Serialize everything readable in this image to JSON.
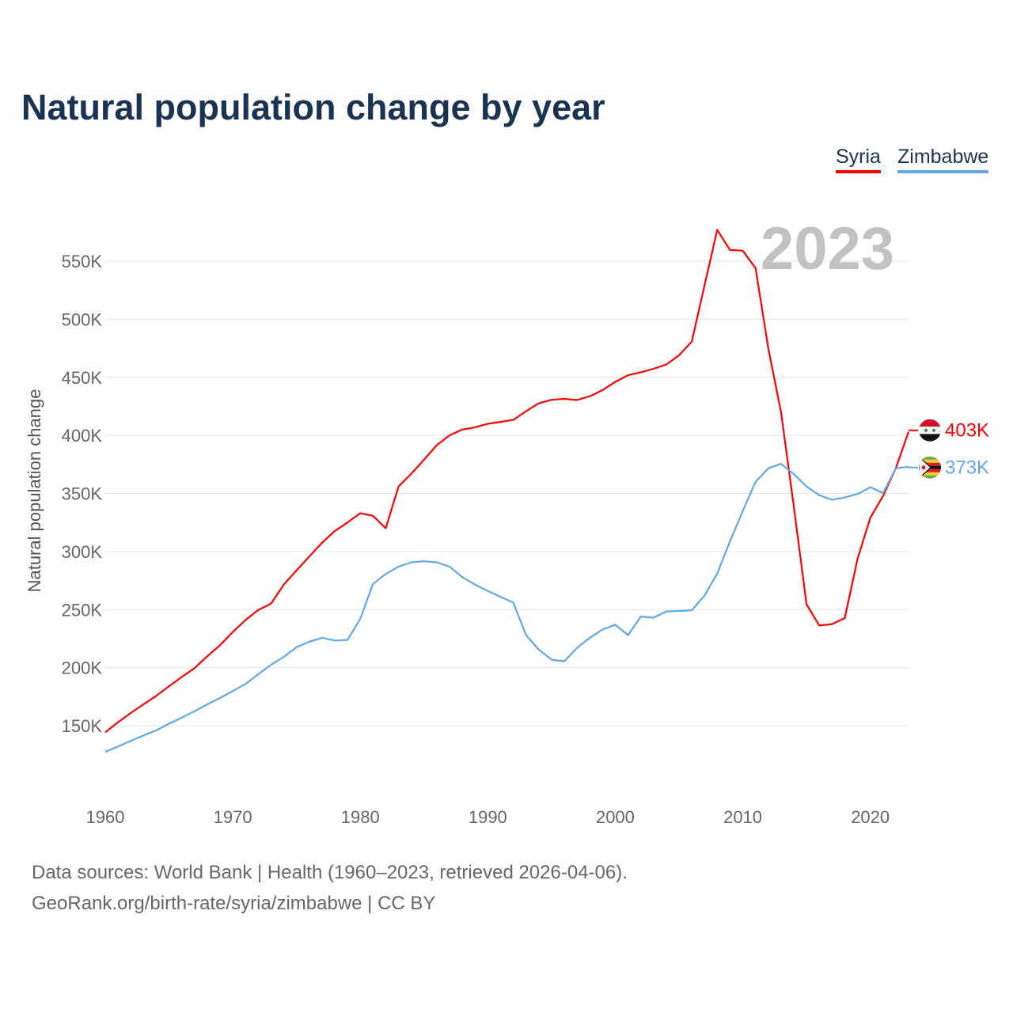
{
  "chart_data": {
    "type": "line",
    "title": "Natural population change by year",
    "xlabel": "",
    "ylabel": "Natural population change",
    "xlim": [
      1960,
      2023
    ],
    "ylim": [
      100000,
      580000
    ],
    "x_ticks": [
      1960,
      1970,
      1980,
      1990,
      2000,
      2010,
      2020
    ],
    "y_ticks": [
      150000,
      200000,
      250000,
      300000,
      350000,
      400000,
      450000,
      500000,
      550000
    ],
    "y_tick_labels": [
      "150K",
      "200K",
      "250K",
      "300K",
      "350K",
      "400K",
      "450K",
      "500K",
      "550K"
    ],
    "grid": true,
    "legend_position": "top-right",
    "year_label": "2023",
    "x": [
      1960,
      1961,
      1962,
      1963,
      1964,
      1965,
      1966,
      1967,
      1968,
      1969,
      1970,
      1971,
      1972,
      1973,
      1974,
      1975,
      1976,
      1977,
      1978,
      1979,
      1980,
      1981,
      1982,
      1983,
      1984,
      1985,
      1986,
      1987,
      1988,
      1989,
      1990,
      1991,
      1992,
      1993,
      1994,
      1995,
      1996,
      1997,
      1998,
      1999,
      2000,
      2001,
      2002,
      2003,
      2004,
      2005,
      2006,
      2007,
      2008,
      2009,
      2010,
      2011,
      2012,
      2013,
      2014,
      2015,
      2016,
      2017,
      2018,
      2019,
      2020,
      2021,
      2022,
      2023
    ],
    "series": [
      {
        "name": "Syria",
        "color": "#ff0000",
        "end_label": "403K",
        "flag": "syria-flag-icon",
        "values": [
          144300,
          153000,
          161000,
          168400,
          175700,
          184000,
          192000,
          199600,
          209800,
          219300,
          230700,
          241000,
          249600,
          255000,
          271600,
          283700,
          295700,
          307500,
          317700,
          325000,
          333000,
          330700,
          320000,
          356000,
          367000,
          379000,
          391600,
          400000,
          405000,
          407000,
          410000,
          411600,
          413300,
          420800,
          427600,
          430600,
          431400,
          430400,
          433700,
          439000,
          446000,
          451800,
          454300,
          457300,
          461000,
          469000,
          480800,
          529000,
          577000,
          559600,
          559000,
          544000,
          475000,
          420000,
          339000,
          254600,
          236300,
          237500,
          242600,
          293700,
          329000,
          347800,
          371700,
          403000
        ]
      },
      {
        "name": "Zimbabwe",
        "color": "#5fa8ec",
        "end_label": "373K",
        "flag": "zimbabwe-flag-icon",
        "values": [
          127500,
          132000,
          137000,
          141600,
          146000,
          151800,
          157000,
          162500,
          168400,
          173900,
          179800,
          186000,
          194300,
          202500,
          209300,
          217700,
          222300,
          225700,
          223400,
          223900,
          242000,
          272000,
          280700,
          287000,
          290700,
          291600,
          290700,
          287000,
          278000,
          271600,
          266000,
          261000,
          256000,
          228000,
          215600,
          206800,
          205500,
          216900,
          225700,
          232700,
          237000,
          228000,
          244000,
          243000,
          248400,
          248800,
          249400,
          262000,
          281000,
          308800,
          335000,
          360000,
          371700,
          375500,
          366700,
          356000,
          348600,
          344500,
          346500,
          349600,
          355400,
          350300,
          371700,
          373000
        ]
      }
    ]
  },
  "footer": {
    "line1": "Data sources: World Bank | Health (1960–2023, retrieved 2026-04-06).",
    "line2": "GeoRank.org/birth-rate/syria/zimbabwe | CC BY"
  }
}
